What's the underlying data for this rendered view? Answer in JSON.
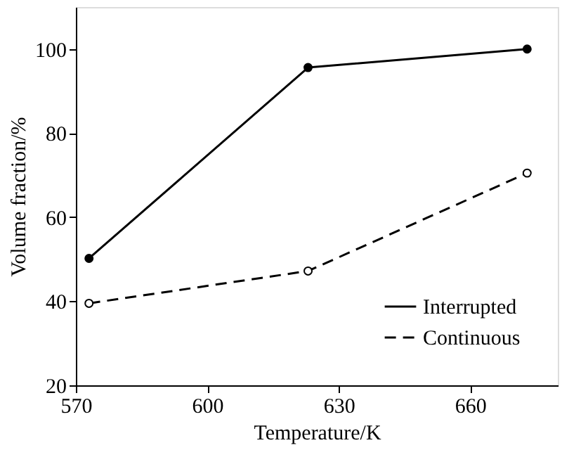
{
  "chart_data": {
    "type": "line",
    "xlabel": "Temperature/K",
    "ylabel": "Volume fraction/%",
    "x": [
      573,
      623,
      673
    ],
    "series": [
      {
        "name": "Interrupted",
        "color": "#000000",
        "values": [
          50.2,
          95.6,
          100
        ],
        "line_style": "solid",
        "marker": "circle"
      },
      {
        "name": "Continuous",
        "color": "#000000",
        "values": [
          39.5,
          47.2,
          70.5
        ],
        "line_style": "dashed",
        "marker": "circle"
      }
    ],
    "xlim": [
      570,
      680
    ],
    "xticks": [
      570,
      600,
      630,
      660
    ],
    "ylim": [
      20,
      110
    ],
    "yticks": [
      20,
      40,
      60,
      80,
      100
    ],
    "grid": false,
    "legend": "bottom right"
  }
}
